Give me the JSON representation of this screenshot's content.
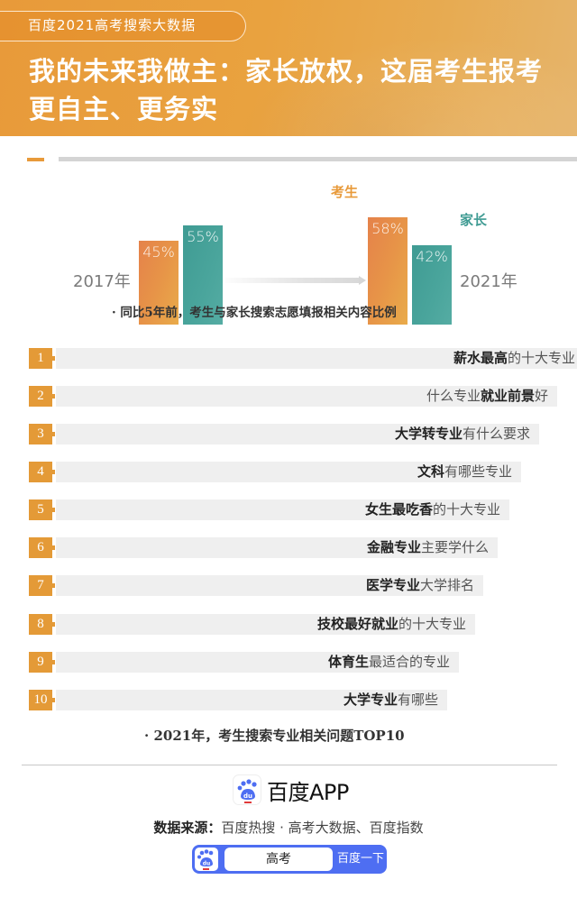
{
  "header": {
    "tag": "百度2021高考搜索大数据",
    "title": "我的未来我做主：家长放权，这届考生报考更自主、更务实"
  },
  "colors": {
    "header_orange": "#e89a3a",
    "student_orange": "#e7904a",
    "parent_teal": "#4aa59c",
    "rank_badge": "#e49a37",
    "rank_bar": "#efefef",
    "baidu_blue": "#4e6ef2"
  },
  "chart": {
    "year_2017": "2017年",
    "year_2021": "2021年",
    "label_student": "考生",
    "label_parent": "家长",
    "v2017_student": "45%",
    "v2017_parent": "55%",
    "v2021_student": "58%",
    "v2021_parent": "42%",
    "caption": "· 同比5年前，考生与家长搜索志愿填报相关内容比例"
  },
  "ranking": {
    "items": [
      {
        "rank": "1",
        "bold": "薪水最高",
        "rest": "的十大专业",
        "bold_first": true
      },
      {
        "rank": "2",
        "pre": "什么专业",
        "bold": "就业前景",
        "rest": "好",
        "bold_first": false
      },
      {
        "rank": "3",
        "bold": "大学转专业",
        "rest": "有什么要求",
        "bold_first": true
      },
      {
        "rank": "4",
        "bold": "文科",
        "rest": "有哪些专业",
        "bold_first": true
      },
      {
        "rank": "5",
        "bold": "女生最吃香",
        "rest": "的十大专业",
        "bold_first": true
      },
      {
        "rank": "6",
        "bold": "金融专业",
        "rest": "主要学什么",
        "bold_first": true
      },
      {
        "rank": "7",
        "bold": "医学专业",
        "rest": "大学排名",
        "bold_first": true
      },
      {
        "rank": "8",
        "bold": "技校最好就业",
        "rest": "的十大专业",
        "bold_first": true
      },
      {
        "rank": "9",
        "bold": "体育生",
        "rest": "最适合的专业",
        "bold_first": true
      },
      {
        "rank": "10",
        "bold": "大学专业",
        "rest": "有哪些",
        "bold_first": true
      }
    ],
    "caption": "·  2021年，考生搜索专业相关问题TOP10"
  },
  "footer": {
    "logo_text": "百度APP",
    "source_label": "数据来源：",
    "source_text": "百度热搜 · 高考大数据、百度指数",
    "search_value": "高考",
    "search_button": "百度一下"
  },
  "chart_data": [
    {
      "type": "bar",
      "title": "同比5年前，考生与家长搜索志愿填报相关内容比例",
      "categories": [
        "2017年",
        "2021年"
      ],
      "series": [
        {
          "name": "考生",
          "values": [
            45,
            58
          ],
          "color": "#e7904a"
        },
        {
          "name": "家长",
          "values": [
            55,
            42
          ],
          "color": "#4aa59c"
        }
      ],
      "unit": "%",
      "xlabel": "",
      "ylabel": "",
      "ylim": [
        0,
        100
      ],
      "grid": false,
      "legend_position": "inline labels next to 2021 bars"
    },
    {
      "type": "table",
      "title": "2021年，考生搜索专业相关问题TOP10",
      "columns": [
        "rank",
        "query"
      ],
      "rows": [
        [
          1,
          "薪水最高的十大专业"
        ],
        [
          2,
          "什么专业就业前景好"
        ],
        [
          3,
          "大学转专业有什么要求"
        ],
        [
          4,
          "文科有哪些专业"
        ],
        [
          5,
          "女生最吃香的十大专业"
        ],
        [
          6,
          "金融专业主要学什么"
        ],
        [
          7,
          "医学专业大学排名"
        ],
        [
          8,
          "技校最好就业的十大专业"
        ],
        [
          9,
          "体育生最适合的专业"
        ],
        [
          10,
          "大学专业有哪些"
        ]
      ]
    }
  ]
}
